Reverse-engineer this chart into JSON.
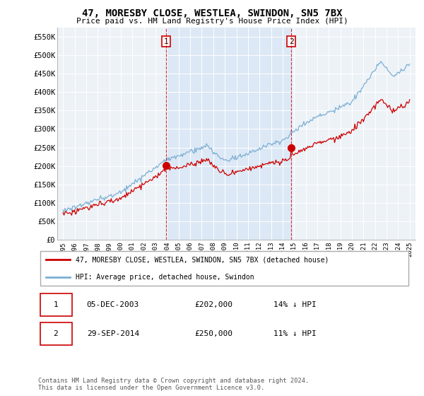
{
  "title": "47, MORESBY CLOSE, WESTLEA, SWINDON, SN5 7BX",
  "subtitle": "Price paid vs. HM Land Registry's House Price Index (HPI)",
  "ylabel_ticks": [
    "£0",
    "£50K",
    "£100K",
    "£150K",
    "£200K",
    "£250K",
    "£300K",
    "£350K",
    "£400K",
    "£450K",
    "£500K",
    "£550K"
  ],
  "ytick_values": [
    0,
    50000,
    100000,
    150000,
    200000,
    250000,
    300000,
    350000,
    400000,
    450000,
    500000,
    550000
  ],
  "xlim": [
    1994.5,
    2025.5
  ],
  "ylim": [
    0,
    575000
  ],
  "sale1": {
    "year": 2003.92,
    "price": 202000,
    "label": "1"
  },
  "sale2": {
    "year": 2014.75,
    "price": 250000,
    "label": "2"
  },
  "annotation1": {
    "date": "05-DEC-2003",
    "price": "£202,000",
    "pct": "14% ↓ HPI"
  },
  "annotation2": {
    "date": "29-SEP-2014",
    "price": "£250,000",
    "pct": "11% ↓ HPI"
  },
  "legend_house": "47, MORESBY CLOSE, WESTLEA, SWINDON, SN5 7BX (detached house)",
  "legend_hpi": "HPI: Average price, detached house, Swindon",
  "footnote": "Contains HM Land Registry data © Crown copyright and database right 2024.\nThis data is licensed under the Open Government Licence v3.0.",
  "house_color": "#cc0000",
  "hpi_color": "#7bafd4",
  "shade_color": "#dce8f5",
  "background_color": "#edf2f7",
  "grid_color": "#ffffff"
}
